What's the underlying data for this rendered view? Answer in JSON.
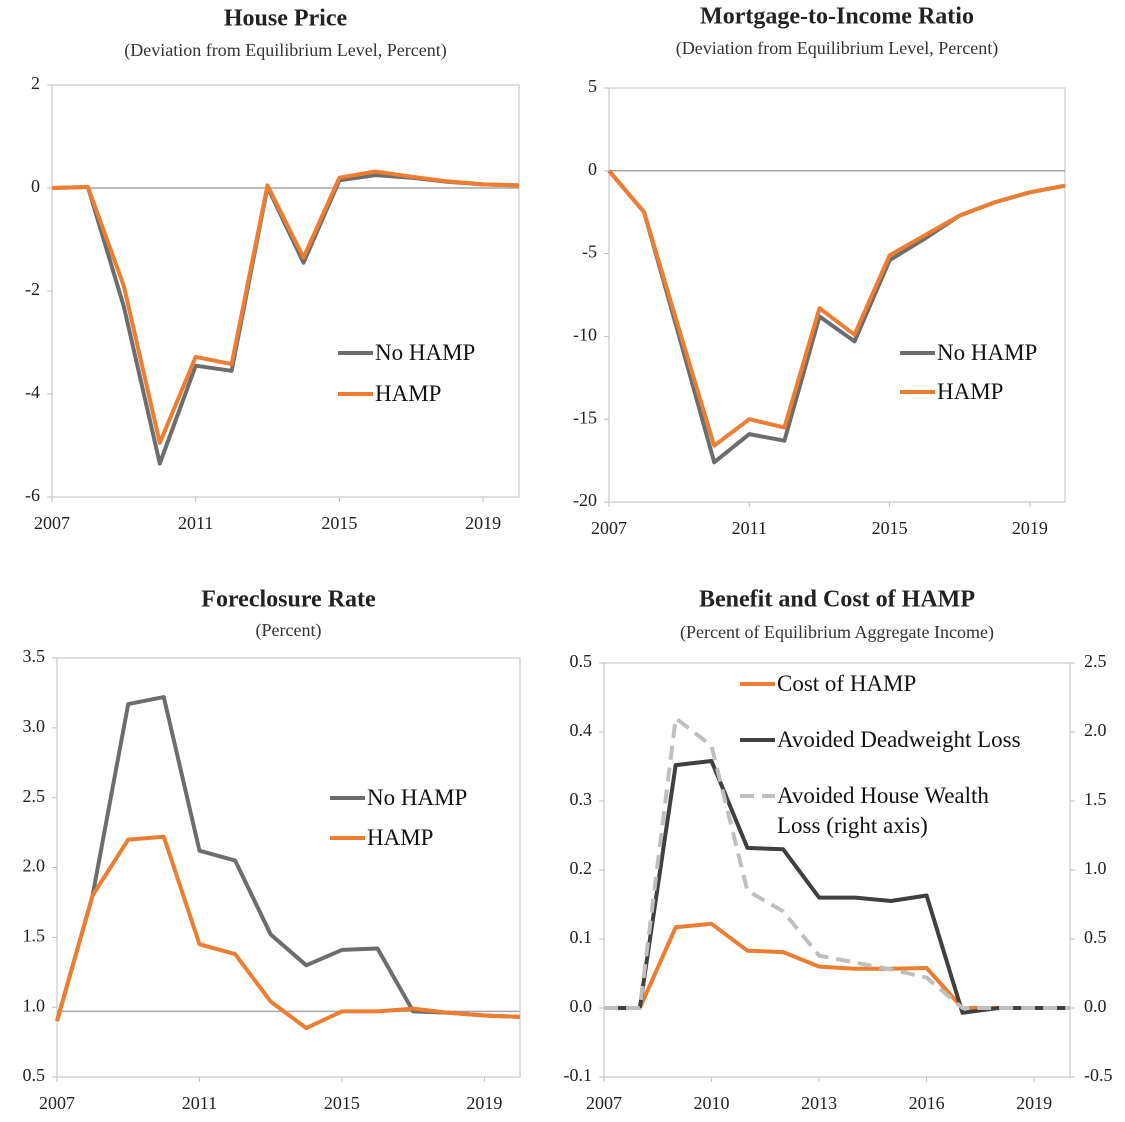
{
  "chart_data": [
    {
      "type": "line",
      "title": "House Price",
      "subtitle": "(Deviation  from Equilibrium  Level,  Percent)",
      "x": [
        2007,
        2008,
        2009,
        2010,
        2011,
        2012,
        2013,
        2014,
        2015,
        2016,
        2017,
        2018,
        2019,
        2020
      ],
      "xlim": [
        2007,
        2020
      ],
      "xticks": [
        2007,
        2011,
        2015,
        2019
      ],
      "ylim": [
        -6,
        2
      ],
      "yticks": [
        -6,
        -4,
        -2,
        0,
        2
      ],
      "hline": 0,
      "series": [
        {
          "name": "No HAMP",
          "color": "#6d6d6d",
          "values": [
            0,
            0.02,
            -2.3,
            -5.35,
            -3.45,
            -3.55,
            0.02,
            -1.45,
            0.15,
            0.25,
            0.2,
            0.12,
            0.07,
            0.05
          ]
        },
        {
          "name": "HAMP",
          "color": "#ed7d31",
          "values": [
            0,
            0.02,
            -1.9,
            -4.95,
            -3.28,
            -3.42,
            0.05,
            -1.35,
            0.2,
            0.32,
            0.22,
            0.13,
            0.07,
            0.05
          ]
        }
      ]
    },
    {
      "type": "line",
      "title": "Mortgage-to-Income Ratio",
      "subtitle": "(Deviation  from Equilibrium  Level,  Percent)",
      "x": [
        2007,
        2008,
        2009,
        2010,
        2011,
        2012,
        2013,
        2014,
        2015,
        2016,
        2017,
        2018,
        2019,
        2020
      ],
      "xlim": [
        2007,
        2020
      ],
      "xticks": [
        2007,
        2011,
        2015,
        2019
      ],
      "ylim": [
        -20,
        5
      ],
      "yticks": [
        -20,
        -15,
        -10,
        -5,
        0,
        5
      ],
      "hline": 0,
      "series": [
        {
          "name": "No HAMP",
          "color": "#6d6d6d",
          "values": [
            0,
            -2.5,
            -10,
            -17.6,
            -15.9,
            -16.3,
            -8.8,
            -10.3,
            -5.4,
            -4.1,
            -2.7,
            -1.9,
            -1.3,
            -0.9
          ]
        },
        {
          "name": "HAMP",
          "color": "#ed7d31",
          "values": [
            0,
            -2.5,
            -9.6,
            -16.6,
            -15,
            -15.5,
            -8.3,
            -9.9,
            -5.1,
            -3.9,
            -2.7,
            -1.9,
            -1.3,
            -0.9
          ]
        }
      ]
    },
    {
      "type": "line",
      "title": "Foreclosure Rate",
      "subtitle": "(Percent)",
      "x": [
        2007,
        2008,
        2009,
        2010,
        2011,
        2012,
        2013,
        2014,
        2015,
        2016,
        2017,
        2018,
        2019,
        2020
      ],
      "xlim": [
        2007,
        2020
      ],
      "xticks": [
        2007,
        2011,
        2015,
        2019
      ],
      "ylim": [
        0.5,
        3.5
      ],
      "yticks": [
        0.5,
        {
          "value": 1,
          "label": "1.0"
        },
        1.5,
        {
          "value": 2,
          "label": "2.0"
        },
        2.5,
        {
          "value": 3,
          "label": "3.0"
        },
        3.5
      ],
      "hline": 0.97,
      "series": [
        {
          "name": "No HAMP",
          "color": "#6d6d6d",
          "values": [
            0.9,
            1.8,
            3.17,
            3.22,
            2.12,
            2.05,
            1.52,
            1.3,
            1.41,
            1.42,
            0.97,
            0.96,
            0.94,
            0.93
          ]
        },
        {
          "name": "HAMP",
          "color": "#ed7d31",
          "values": [
            0.9,
            1.8,
            2.2,
            2.22,
            1.45,
            1.38,
            1.04,
            0.85,
            0.97,
            0.97,
            0.99,
            0.96,
            0.94,
            0.93
          ]
        }
      ]
    },
    {
      "type": "line",
      "title": "Benefit and Cost of HAMP",
      "subtitle": "(Percent of Equilibrium Aggregate  Income)",
      "x": [
        2007,
        2008,
        2009,
        2010,
        2011,
        2012,
        2013,
        2014,
        2015,
        2016,
        2017,
        2018,
        2019,
        2020
      ],
      "xlim": [
        2007,
        2020
      ],
      "xticks": [
        2007,
        2010,
        2013,
        2016,
        2019
      ],
      "ylim": [
        -0.1,
        0.5
      ],
      "yticks": [
        -0.1,
        {
          "value": 0,
          "label": "0.0"
        },
        0.1,
        0.2,
        0.3,
        0.4,
        0.5
      ],
      "y2lim": [
        -0.5,
        2.5
      ],
      "y2ticks": [
        -0.5,
        {
          "value": 0,
          "label": "0.0"
        },
        0.5,
        {
          "value": 1,
          "label": "1.0"
        },
        1.5,
        {
          "value": 2,
          "label": "2.0"
        },
        2.5
      ],
      "series": [
        {
          "name": "Cost of HAMP",
          "color": "#ed7d31",
          "values": [
            0,
            0,
            0.117,
            0.122,
            0.083,
            0.081,
            0.06,
            0.057,
            0.057,
            0.058,
            0,
            0,
            0,
            0
          ]
        },
        {
          "name": "Avoided Deadweight Loss",
          "color": "#404040",
          "values": [
            0,
            0,
            0.352,
            0.358,
            0.232,
            0.23,
            0.16,
            0.16,
            0.155,
            0.163,
            -0.007,
            0,
            0,
            0
          ]
        },
        {
          "name": "Avoided House Wealth Loss (right axis)",
          "color": "#bfbfbf",
          "dashed": true,
          "axis": "y2",
          "values": [
            0,
            0,
            2.1,
            1.9,
            0.85,
            0.7,
            0.38,
            0.33,
            0.28,
            0.22,
            0,
            0,
            0,
            0
          ]
        }
      ]
    }
  ]
}
